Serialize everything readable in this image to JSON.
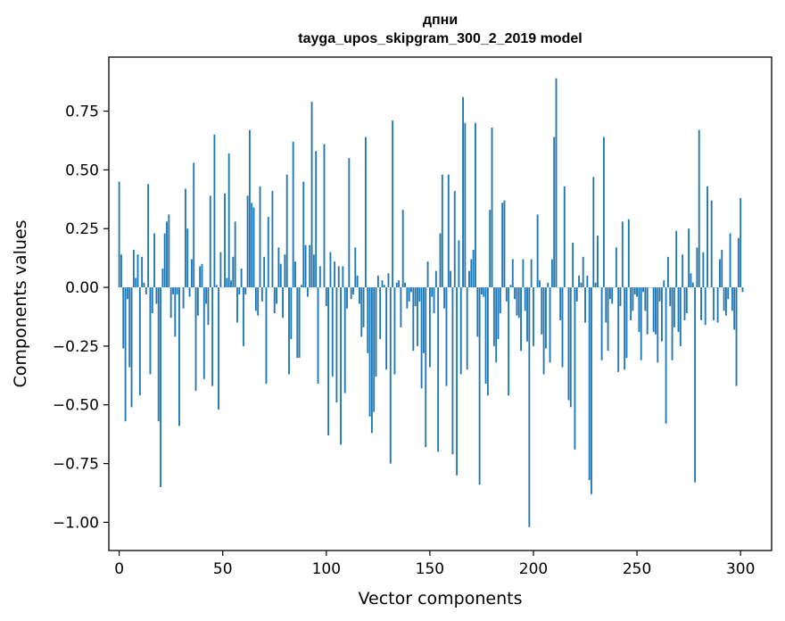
{
  "chart_data": {
    "type": "bar",
    "title_line1": "дпни",
    "title_line2": "tayga_upos_skipgram_300_2_2019 model",
    "xlabel": "Vector components",
    "ylabel": "Components values",
    "xlim": [
      -5,
      315
    ],
    "ylim": [
      -1.12,
      0.98
    ],
    "xticks": [
      0,
      50,
      100,
      150,
      200,
      250,
      300
    ],
    "yticks": [
      -1.0,
      -0.75,
      -0.5,
      -0.25,
      0.0,
      0.25,
      0.5,
      0.75
    ],
    "ytick_labels": [
      "−1.00",
      "−0.75",
      "−0.50",
      "−0.25",
      "0.00",
      "0.25",
      "0.50",
      "0.75"
    ],
    "bar_color": "#1f77b4",
    "values": [
      0.45,
      0.14,
      -0.26,
      -0.57,
      -0.05,
      -0.34,
      -0.51,
      0.16,
      0.04,
      0.14,
      -0.46,
      0.13,
      0.02,
      -0.03,
      0.44,
      -0.37,
      -0.11,
      0.23,
      -0.07,
      -0.57,
      -0.85,
      0.08,
      0.23,
      0.28,
      0.31,
      -0.13,
      -0.03,
      -0.21,
      -0.03,
      -0.59,
      0.0,
      -0.09,
      0.42,
      0.25,
      -0.04,
      0.12,
      0.53,
      -0.44,
      -0.12,
      0.09,
      0.1,
      -0.39,
      -0.07,
      -0.16,
      0.39,
      -0.42,
      0.65,
      0.01,
      -0.52,
      0.15,
      0.0,
      0.4,
      0.04,
      0.57,
      0.03,
      0.13,
      0.28,
      -0.15,
      -0.03,
      0.08,
      -0.25,
      -0.03,
      0.39,
      0.67,
      0.36,
      0.34,
      -0.1,
      -0.12,
      0.43,
      -0.06,
      0.13,
      -0.41,
      0.3,
      0.0,
      0.41,
      -0.11,
      -0.07,
      0.17,
      0.1,
      -0.13,
      0.14,
      0.48,
      -0.37,
      -0.22,
      0.62,
      0.11,
      -0.3,
      -0.3,
      0.01,
      0.45,
      0.18,
      -0.04,
      0.18,
      0.79,
      0.14,
      0.58,
      -0.41,
      0.09,
      0.0,
      0.61,
      -0.08,
      -0.63,
      0.15,
      -0.38,
      0.11,
      -0.49,
      0.09,
      -0.67,
      0.09,
      -0.45,
      -0.09,
      0.55,
      -0.05,
      -0.03,
      0.17,
      0.05,
      -0.07,
      -0.21,
      -0.17,
      0.64,
      -0.28,
      -0.55,
      -0.62,
      -0.53,
      -0.38,
      0.05,
      -0.22,
      0.03,
      0.01,
      -0.35,
      0.06,
      -0.75,
      0.71,
      -0.37,
      0.02,
      0.03,
      -0.17,
      0.33,
      0.02,
      -0.09,
      -0.06,
      -0.02,
      -0.27,
      -0.08,
      -0.25,
      -0.06,
      -0.43,
      -0.28,
      -0.68,
      0.11,
      -0.34,
      -0.04,
      -0.11,
      0.07,
      -0.7,
      0.23,
      0.48,
      -0.09,
      -0.42,
      0.48,
      0.07,
      -0.71,
      0.41,
      -0.8,
      0.2,
      -0.37,
      0.81,
      0.7,
      -0.35,
      0.07,
      0.12,
      0.16,
      0.7,
      -0.21,
      -0.84,
      -0.03,
      -0.04,
      -0.41,
      -0.46,
      0.33,
      0.68,
      -0.25,
      -0.32,
      -0.22,
      -0.11,
      0.36,
      0.37,
      -0.06,
      -0.46,
      0.01,
      0.12,
      -0.05,
      -0.12,
      -0.13,
      -0.27,
      0.12,
      -0.1,
      -0.23,
      -1.02,
      0.12,
      -0.25,
      0.0,
      0.31,
      0.03,
      -0.2,
      -0.37,
      -0.26,
      0.02,
      -0.32,
      0.12,
      0.64,
      0.89,
      0.0,
      -0.14,
      -0.34,
      0.43,
      0.0,
      -0.48,
      -0.51,
      0.19,
      -0.69,
      -0.06,
      0.05,
      0.02,
      0.13,
      -0.15,
      0.05,
      -0.82,
      -0.88,
      0.47,
      0.02,
      0.22,
      0.0,
      -0.31,
      0.64,
      -0.15,
      -0.27,
      -0.05,
      -0.07,
      0.0,
      0.17,
      -0.36,
      -0.08,
      0.28,
      -0.35,
      -0.3,
      0.29,
      -0.14,
      -0.1,
      -0.03,
      -0.04,
      -0.19,
      -0.31,
      -0.02,
      -0.1,
      -0.2,
      0.0,
      0.0,
      -0.19,
      -0.2,
      -0.32,
      -0.06,
      -0.23,
      0.03,
      -0.58,
      0.13,
      -0.08,
      -0.31,
      -0.17,
      0.24,
      -0.19,
      -0.25,
      0.14,
      -0.14,
      -0.11,
      0.25,
      0.06,
      0.02,
      -0.83,
      0.17,
      0.67,
      -0.14,
      0.15,
      -0.16,
      0.43,
      0.0,
      0.37,
      -0.14,
      0.0,
      -0.15,
      0.12,
      0.16,
      -0.1,
      -0.12,
      -0.05,
      0.23,
      -0.1,
      -0.18,
      -0.42,
      0.21,
      0.38,
      -0.02
    ]
  }
}
